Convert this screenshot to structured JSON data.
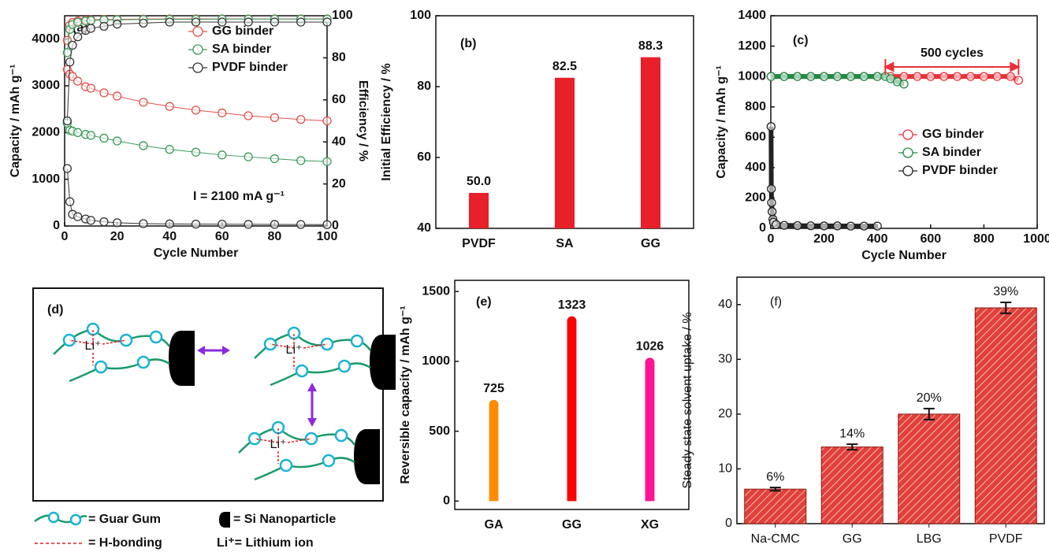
{
  "chart_data": [
    {
      "type": "line",
      "panel_label": "(a)",
      "x_label": "Cycle Number",
      "y_label": "Capacity / mAh g⁻¹",
      "y2_label": "Efficiency / %",
      "annotation": "I = 2100 mA g⁻¹",
      "xlim": [
        0,
        100
      ],
      "xticks": [
        0,
        20,
        40,
        60,
        80,
        100
      ],
      "ylim": [
        0,
        4500
      ],
      "yticks": [
        0,
        1000,
        2000,
        3000,
        4000
      ],
      "y2lim": [
        0,
        100
      ],
      "y2ticks": [
        0,
        20,
        40,
        60,
        80,
        100
      ],
      "legend": "upper right",
      "x": [
        1,
        2,
        3,
        5,
        8,
        10,
        15,
        20,
        30,
        40,
        50,
        60,
        70,
        80,
        90,
        100
      ],
      "series": [
        {
          "name": "GG binder",
          "color": "#e0514b",
          "values": [
            3350,
            3250,
            3200,
            3100,
            2980,
            2950,
            2850,
            2780,
            2650,
            2560,
            2480,
            2420,
            2360,
            2320,
            2280,
            2250
          ]
        },
        {
          "name": "SA binder",
          "color": "#3a9a5a",
          "values": [
            2200,
            2050,
            2030,
            2000,
            1960,
            1940,
            1880,
            1820,
            1720,
            1640,
            1580,
            1520,
            1480,
            1440,
            1400,
            1380
          ]
        },
        {
          "name": "PVDF binder",
          "color": "#333333",
          "values": [
            1230,
            520,
            250,
            200,
            150,
            120,
            90,
            70,
            50,
            45,
            40,
            38,
            35,
            33,
            32,
            30
          ]
        },
        {
          "name": "GG binder",
          "color": "#e0514b",
          "axis": "y2",
          "values": [
            88.3,
            95.5,
            96.8,
            97.5,
            97.9,
            98.0,
            98.2,
            98.3,
            98.4,
            98.5,
            98.5,
            98.5,
            98.5,
            98.5,
            98.5,
            98.5
          ]
        },
        {
          "name": "SA binder",
          "color": "#3a9a5a",
          "axis": "y2",
          "values": [
            82.5,
            93.5,
            95.8,
            96.9,
            97.5,
            97.7,
            98.0,
            98.1,
            98.2,
            98.3,
            98.3,
            98.4,
            98.4,
            98.4,
            98.4,
            98.4
          ]
        },
        {
          "name": "PVDF binder",
          "color": "#333333",
          "axis": "y2",
          "values": [
            50.0,
            78,
            86,
            90,
            93,
            94,
            95,
            96,
            96.5,
            97,
            97,
            97,
            97,
            97,
            97,
            97
          ]
        }
      ]
    },
    {
      "type": "bar",
      "panel_label": "(b)",
      "y_label": "Initial Efficiency / %",
      "categories": [
        "PVDF",
        "SA",
        "GG"
      ],
      "values": [
        50.0,
        82.5,
        88.3
      ],
      "value_labels": [
        "50.0",
        "82.5",
        "88.3"
      ],
      "color": "#e8202a",
      "ylim": [
        40,
        100
      ],
      "yticks": [
        40,
        60,
        80,
        100
      ]
    },
    {
      "type": "line",
      "panel_label": "(c)",
      "x_label": "Cycle Number",
      "y_label": "Capacity / mAh g⁻¹",
      "annotation": "500 cycles",
      "xlim": [
        0,
        1000
      ],
      "xticks": [
        0,
        200,
        400,
        600,
        800,
        1000
      ],
      "ylim": [
        0,
        1400
      ],
      "yticks": [
        0,
        200,
        400,
        600,
        800,
        1000,
        1200,
        1400
      ],
      "legend": "center right",
      "series": [
        {
          "name": "GG binder",
          "color": "#e8323a",
          "x": [
            1,
            50,
            100,
            150,
            200,
            250,
            300,
            350,
            400,
            450,
            500,
            550,
            600,
            650,
            700,
            750,
            800,
            850,
            900,
            930
          ],
          "values": [
            1000,
            1000,
            1000,
            1000,
            1000,
            1000,
            1000,
            1000,
            1000,
            1000,
            1000,
            1000,
            1000,
            1000,
            1000,
            1000,
            1000,
            1000,
            1000,
            975
          ]
        },
        {
          "name": "SA binder",
          "color": "#1e8a46",
          "x": [
            1,
            50,
            100,
            150,
            200,
            250,
            300,
            350,
            400,
            430,
            450,
            475,
            500
          ],
          "values": [
            1000,
            1000,
            1000,
            1000,
            1000,
            1000,
            1000,
            1000,
            1000,
            1000,
            985,
            965,
            950
          ]
        },
        {
          "name": "PVDF binder",
          "color": "#222222",
          "x": [
            1,
            2,
            3,
            5,
            8,
            10,
            20,
            50,
            100,
            150,
            200,
            250,
            300,
            350,
            400
          ],
          "values": [
            670,
            260,
            170,
            110,
            60,
            40,
            25,
            20,
            18,
            17,
            16,
            16,
            15,
            15,
            15
          ]
        }
      ]
    },
    {
      "type": "bar",
      "panel_label": "(e)",
      "y_label": "Reversible capacity / mAh g⁻¹",
      "categories": [
        "GA",
        "GG",
        "XG"
      ],
      "values": [
        725,
        1323,
        1026
      ],
      "colors": [
        "#ff8c00",
        "#ff0000",
        "#ff1493"
      ],
      "rounded": true,
      "ylim": [
        -60,
        1580
      ],
      "yticks": [
        0,
        500,
        1000,
        1500
      ]
    },
    {
      "type": "bar",
      "panel_label": "(f)",
      "y_label": "Steady state solvent uptake / %",
      "categories": [
        "Na-CMC",
        "GG",
        "LBG",
        "PVDF"
      ],
      "values": [
        6.3,
        14,
        20,
        39.4
      ],
      "value_labels": [
        "6%",
        "14%",
        "20%",
        "39%"
      ],
      "errors": [
        0.3,
        0.5,
        1,
        1
      ],
      "color": "#e0413a",
      "hatch": true,
      "ylim": [
        0,
        45
      ],
      "yticks": [
        0,
        10,
        20,
        30,
        40
      ]
    }
  ],
  "diagram": {
    "label": "(d)",
    "ion": "Li⁺",
    "legend": [
      "= Guar Gum",
      "= Si Nanoparticle",
      "= H-bonding",
      "Li⁺= Lithium ion"
    ]
  }
}
